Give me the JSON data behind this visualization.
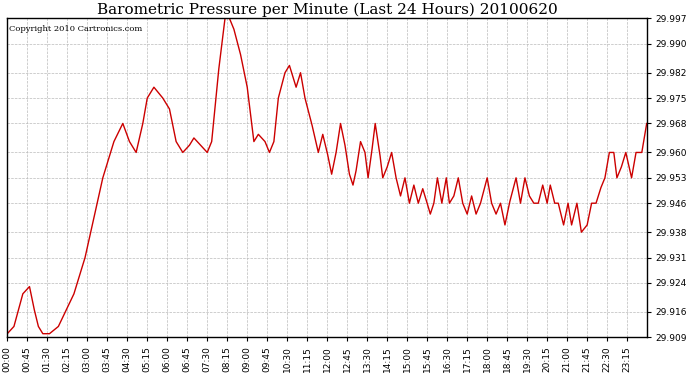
{
  "title": "Barometric Pressure per Minute (Last 24 Hours) 20100620",
  "copyright_text": "Copyright 2010 Cartronics.com",
  "line_color": "#cc0000",
  "bg_color": "#ffffff",
  "grid_color": "#bbbbbb",
  "ylim": [
    29.909,
    29.997
  ],
  "yticks": [
    29.909,
    29.916,
    29.924,
    29.931,
    29.938,
    29.946,
    29.953,
    29.96,
    29.968,
    29.975,
    29.982,
    29.99,
    29.997
  ],
  "xtick_labels": [
    "00:00",
    "00:45",
    "01:30",
    "02:15",
    "03:00",
    "03:45",
    "04:30",
    "05:15",
    "06:00",
    "06:45",
    "07:30",
    "08:15",
    "09:00",
    "09:45",
    "10:30",
    "11:15",
    "12:00",
    "12:45",
    "13:30",
    "14:15",
    "15:00",
    "15:45",
    "16:30",
    "17:15",
    "18:00",
    "18:45",
    "19:30",
    "20:15",
    "21:00",
    "21:45",
    "22:30",
    "23:15"
  ],
  "title_fontsize": 11,
  "tick_fontsize": 6.5,
  "copyright_fontsize": 6,
  "line_width": 1.0,
  "waypoints": [
    [
      0,
      29.91
    ],
    [
      15,
      29.912
    ],
    [
      35,
      29.921
    ],
    [
      50,
      29.923
    ],
    [
      60,
      29.917
    ],
    [
      70,
      29.912
    ],
    [
      80,
      29.91
    ],
    [
      95,
      29.91
    ],
    [
      115,
      29.912
    ],
    [
      150,
      29.921
    ],
    [
      175,
      29.931
    ],
    [
      195,
      29.942
    ],
    [
      215,
      29.953
    ],
    [
      240,
      29.963
    ],
    [
      260,
      29.968
    ],
    [
      275,
      29.963
    ],
    [
      290,
      29.96
    ],
    [
      305,
      29.968
    ],
    [
      315,
      29.975
    ],
    [
      330,
      29.978
    ],
    [
      350,
      29.975
    ],
    [
      365,
      29.972
    ],
    [
      380,
      29.963
    ],
    [
      395,
      29.96
    ],
    [
      410,
      29.962
    ],
    [
      420,
      29.964
    ],
    [
      435,
      29.962
    ],
    [
      450,
      29.96
    ],
    [
      460,
      29.963
    ],
    [
      475,
      29.982
    ],
    [
      490,
      29.997
    ],
    [
      500,
      29.997
    ],
    [
      510,
      29.994
    ],
    [
      525,
      29.987
    ],
    [
      540,
      29.978
    ],
    [
      555,
      29.963
    ],
    [
      565,
      29.965
    ],
    [
      580,
      29.963
    ],
    [
      590,
      29.96
    ],
    [
      600,
      29.963
    ],
    [
      610,
      29.975
    ],
    [
      625,
      29.982
    ],
    [
      635,
      29.984
    ],
    [
      650,
      29.978
    ],
    [
      660,
      29.982
    ],
    [
      670,
      29.975
    ],
    [
      685,
      29.968
    ],
    [
      700,
      29.96
    ],
    [
      710,
      29.965
    ],
    [
      720,
      29.96
    ],
    [
      730,
      29.954
    ],
    [
      740,
      29.96
    ],
    [
      750,
      29.968
    ],
    [
      760,
      29.962
    ],
    [
      770,
      29.954
    ],
    [
      778,
      29.951
    ],
    [
      785,
      29.955
    ],
    [
      795,
      29.963
    ],
    [
      805,
      29.96
    ],
    [
      812,
      29.953
    ],
    [
      820,
      29.96
    ],
    [
      828,
      29.968
    ],
    [
      838,
      29.96
    ],
    [
      845,
      29.953
    ],
    [
      855,
      29.956
    ],
    [
      865,
      29.96
    ],
    [
      875,
      29.953
    ],
    [
      885,
      29.948
    ],
    [
      895,
      29.953
    ],
    [
      905,
      29.946
    ],
    [
      915,
      29.951
    ],
    [
      925,
      29.946
    ],
    [
      935,
      29.95
    ],
    [
      945,
      29.946
    ],
    [
      952,
      29.943
    ],
    [
      960,
      29.946
    ],
    [
      968,
      29.953
    ],
    [
      978,
      29.946
    ],
    [
      988,
      29.953
    ],
    [
      995,
      29.946
    ],
    [
      1005,
      29.948
    ],
    [
      1015,
      29.953
    ],
    [
      1025,
      29.946
    ],
    [
      1035,
      29.943
    ],
    [
      1045,
      29.948
    ],
    [
      1055,
      29.943
    ],
    [
      1065,
      29.946
    ],
    [
      1080,
      29.953
    ],
    [
      1090,
      29.946
    ],
    [
      1100,
      29.943
    ],
    [
      1110,
      29.946
    ],
    [
      1120,
      29.94
    ],
    [
      1130,
      29.946
    ],
    [
      1145,
      29.953
    ],
    [
      1155,
      29.946
    ],
    [
      1165,
      29.953
    ],
    [
      1175,
      29.948
    ],
    [
      1185,
      29.946
    ],
    [
      1195,
      29.946
    ],
    [
      1205,
      29.951
    ],
    [
      1215,
      29.946
    ],
    [
      1222,
      29.951
    ],
    [
      1232,
      29.946
    ],
    [
      1240,
      29.946
    ],
    [
      1252,
      29.94
    ],
    [
      1262,
      29.946
    ],
    [
      1270,
      29.94
    ],
    [
      1282,
      29.946
    ],
    [
      1292,
      29.938
    ],
    [
      1305,
      29.94
    ],
    [
      1315,
      29.946
    ],
    [
      1325,
      29.946
    ],
    [
      1335,
      29.95
    ],
    [
      1345,
      29.953
    ],
    [
      1355,
      29.96
    ],
    [
      1365,
      29.96
    ],
    [
      1372,
      29.953
    ],
    [
      1382,
      29.956
    ],
    [
      1392,
      29.96
    ],
    [
      1405,
      29.953
    ],
    [
      1415,
      29.96
    ],
    [
      1428,
      29.96
    ],
    [
      1439,
      29.968
    ]
  ]
}
